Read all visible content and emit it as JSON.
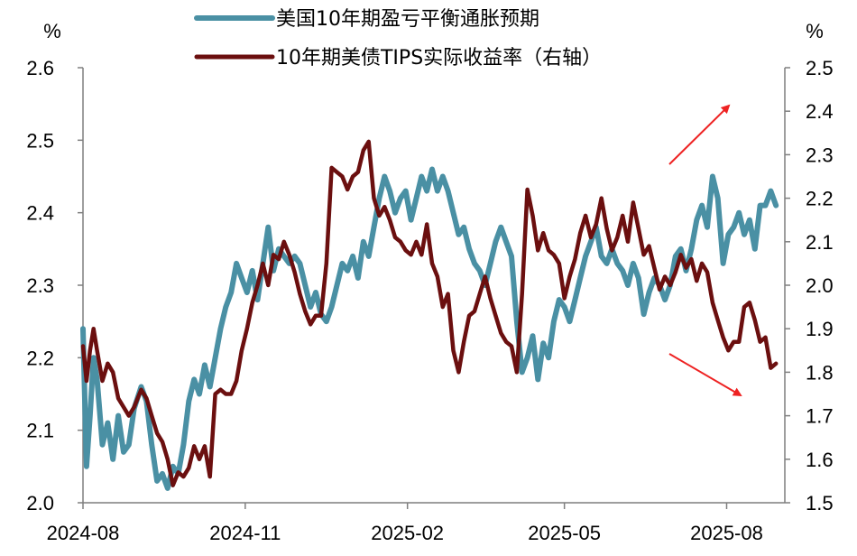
{
  "chart_data": {
    "type": "line",
    "title": "",
    "xlabel": "",
    "ylabel": "%",
    "y2label": "%",
    "x_ticks": [
      "2024-08",
      "2024-11",
      "2025-02",
      "2025-05",
      "2025-08"
    ],
    "ylim": [
      2.0,
      2.6
    ],
    "y_ticks": [
      "2.0",
      "2.1",
      "2.2",
      "2.3",
      "2.4",
      "2.5",
      "2.6"
    ],
    "y2lim": [
      1.5,
      2.5
    ],
    "y2_ticks": [
      "1.5",
      "1.6",
      "1.7",
      "1.8",
      "1.9",
      "2.0",
      "2.1",
      "2.2",
      "2.3",
      "2.4",
      "2.5"
    ],
    "legend_position": "top-center",
    "grid": false,
    "annotations": [
      "up-arrow",
      "down-arrow"
    ],
    "colors": {
      "breakeven": "#4a90a4",
      "tips": "#6b0f0f",
      "arrow": "#ee2222",
      "axis": "#7f7f7f"
    },
    "series": [
      {
        "name": "美国10年期盈亏平衡通胀预期",
        "axis": "left",
        "points": [
          [
            "2024-08-01",
            2.24
          ],
          [
            "2024-08-03",
            2.05
          ],
          [
            "2024-08-05",
            2.12
          ],
          [
            "2024-08-07",
            2.2
          ],
          [
            "2024-08-09",
            2.17
          ],
          [
            "2024-08-12",
            2.08
          ],
          [
            "2024-08-15",
            2.11
          ],
          [
            "2024-08-18",
            2.06
          ],
          [
            "2024-08-21",
            2.12
          ],
          [
            "2024-08-24",
            2.07
          ],
          [
            "2024-08-27",
            2.08
          ],
          [
            "2024-08-30",
            2.13
          ],
          [
            "2024-09-03",
            2.16
          ],
          [
            "2024-09-06",
            2.14
          ],
          [
            "2024-09-09",
            2.08
          ],
          [
            "2024-09-12",
            2.03
          ],
          [
            "2024-09-15",
            2.04
          ],
          [
            "2024-09-18",
            2.02
          ],
          [
            "2024-09-21",
            2.05
          ],
          [
            "2024-09-24",
            2.04
          ],
          [
            "2024-09-27",
            2.08
          ],
          [
            "2024-09-30",
            2.14
          ],
          [
            "2024-10-03",
            2.17
          ],
          [
            "2024-10-06",
            2.15
          ],
          [
            "2024-10-09",
            2.19
          ],
          [
            "2024-10-12",
            2.16
          ],
          [
            "2024-10-15",
            2.2
          ],
          [
            "2024-10-18",
            2.24
          ],
          [
            "2024-10-21",
            2.27
          ],
          [
            "2024-10-24",
            2.29
          ],
          [
            "2024-10-27",
            2.33
          ],
          [
            "2024-10-30",
            2.31
          ],
          [
            "2024-11-02",
            2.29
          ],
          [
            "2024-11-05",
            2.32
          ],
          [
            "2024-11-08",
            2.28
          ],
          [
            "2024-11-11",
            2.33
          ],
          [
            "2024-11-14",
            2.38
          ],
          [
            "2024-11-17",
            2.32
          ],
          [
            "2024-11-20",
            2.35
          ],
          [
            "2024-11-23",
            2.34
          ],
          [
            "2024-11-26",
            2.33
          ],
          [
            "2024-11-29",
            2.34
          ],
          [
            "2024-12-02",
            2.33
          ],
          [
            "2024-12-05",
            2.3
          ],
          [
            "2024-12-08",
            2.27
          ],
          [
            "2024-12-11",
            2.29
          ],
          [
            "2024-12-14",
            2.26
          ],
          [
            "2024-12-17",
            2.25
          ],
          [
            "2024-12-20",
            2.27
          ],
          [
            "2024-12-23",
            2.3
          ],
          [
            "2024-12-26",
            2.33
          ],
          [
            "2024-12-29",
            2.32
          ],
          [
            "2025-01-01",
            2.34
          ],
          [
            "2025-01-04",
            2.31
          ],
          [
            "2025-01-07",
            2.36
          ],
          [
            "2025-01-10",
            2.34
          ],
          [
            "2025-01-13",
            2.38
          ],
          [
            "2025-01-16",
            2.42
          ],
          [
            "2025-01-19",
            2.45
          ],
          [
            "2025-01-22",
            2.43
          ],
          [
            "2025-01-25",
            2.4
          ],
          [
            "2025-01-28",
            2.42
          ],
          [
            "2025-01-31",
            2.43
          ],
          [
            "2025-02-03",
            2.39
          ],
          [
            "2025-02-06",
            2.42
          ],
          [
            "2025-02-09",
            2.45
          ],
          [
            "2025-02-12",
            2.43
          ],
          [
            "2025-02-15",
            2.46
          ],
          [
            "2025-02-18",
            2.43
          ],
          [
            "2025-02-21",
            2.45
          ],
          [
            "2025-02-24",
            2.43
          ],
          [
            "2025-02-27",
            2.4
          ],
          [
            "2025-03-02",
            2.37
          ],
          [
            "2025-03-05",
            2.38
          ],
          [
            "2025-03-08",
            2.35
          ],
          [
            "2025-03-11",
            2.33
          ],
          [
            "2025-03-14",
            2.32
          ],
          [
            "2025-03-17",
            2.3
          ],
          [
            "2025-03-20",
            2.33
          ],
          [
            "2025-03-23",
            2.36
          ],
          [
            "2025-03-26",
            2.38
          ],
          [
            "2025-03-29",
            2.36
          ],
          [
            "2025-04-01",
            2.34
          ],
          [
            "2025-04-04",
            2.25
          ],
          [
            "2025-04-07",
            2.18
          ],
          [
            "2025-04-10",
            2.2
          ],
          [
            "2025-04-13",
            2.23
          ],
          [
            "2025-04-16",
            2.17
          ],
          [
            "2025-04-19",
            2.22
          ],
          [
            "2025-04-22",
            2.2
          ],
          [
            "2025-04-25",
            2.25
          ],
          [
            "2025-04-28",
            2.28
          ],
          [
            "2025-05-01",
            2.27
          ],
          [
            "2025-05-04",
            2.25
          ],
          [
            "2025-05-07",
            2.28
          ],
          [
            "2025-05-10",
            2.31
          ],
          [
            "2025-05-13",
            2.34
          ],
          [
            "2025-05-16",
            2.36
          ],
          [
            "2025-05-19",
            2.38
          ],
          [
            "2025-05-22",
            2.34
          ],
          [
            "2025-05-25",
            2.33
          ],
          [
            "2025-05-28",
            2.35
          ],
          [
            "2025-05-31",
            2.33
          ],
          [
            "2025-06-03",
            2.32
          ],
          [
            "2025-06-06",
            2.3
          ],
          [
            "2025-06-09",
            2.33
          ],
          [
            "2025-06-12",
            2.31
          ],
          [
            "2025-06-15",
            2.26
          ],
          [
            "2025-06-18",
            2.29
          ],
          [
            "2025-06-21",
            2.31
          ],
          [
            "2025-06-24",
            2.3
          ],
          [
            "2025-06-27",
            2.28
          ],
          [
            "2025-06-30",
            2.3
          ],
          [
            "2025-07-03",
            2.34
          ],
          [
            "2025-07-06",
            2.35
          ],
          [
            "2025-07-09",
            2.32
          ],
          [
            "2025-07-12",
            2.35
          ],
          [
            "2025-07-15",
            2.39
          ],
          [
            "2025-07-18",
            2.41
          ],
          [
            "2025-07-21",
            2.38
          ],
          [
            "2025-07-24",
            2.45
          ],
          [
            "2025-07-27",
            2.42
          ],
          [
            "2025-07-30",
            2.33
          ],
          [
            "2025-08-02",
            2.37
          ],
          [
            "2025-08-05",
            2.38
          ],
          [
            "2025-08-08",
            2.4
          ],
          [
            "2025-08-11",
            2.37
          ],
          [
            "2025-08-14",
            2.39
          ],
          [
            "2025-08-17",
            2.35
          ],
          [
            "2025-08-20",
            2.41
          ],
          [
            "2025-08-23",
            2.41
          ],
          [
            "2025-08-26",
            2.43
          ],
          [
            "2025-08-29",
            2.41
          ]
        ]
      },
      {
        "name": "10年期美债TIPS实际收益率（右轴）",
        "axis": "right",
        "points": [
          [
            "2024-08-01",
            1.86
          ],
          [
            "2024-08-03",
            1.78
          ],
          [
            "2024-08-05",
            1.85
          ],
          [
            "2024-08-07",
            1.9
          ],
          [
            "2024-08-09",
            1.85
          ],
          [
            "2024-08-12",
            1.78
          ],
          [
            "2024-08-15",
            1.82
          ],
          [
            "2024-08-18",
            1.8
          ],
          [
            "2024-08-21",
            1.74
          ],
          [
            "2024-08-24",
            1.72
          ],
          [
            "2024-08-27",
            1.7
          ],
          [
            "2024-08-30",
            1.72
          ],
          [
            "2024-09-03",
            1.76
          ],
          [
            "2024-09-06",
            1.74
          ],
          [
            "2024-09-09",
            1.7
          ],
          [
            "2024-09-12",
            1.66
          ],
          [
            "2024-09-15",
            1.64
          ],
          [
            "2024-09-18",
            1.6
          ],
          [
            "2024-09-21",
            1.54
          ],
          [
            "2024-09-24",
            1.57
          ],
          [
            "2024-09-27",
            1.56
          ],
          [
            "2024-09-30",
            1.58
          ],
          [
            "2024-10-03",
            1.63
          ],
          [
            "2024-10-06",
            1.6
          ],
          [
            "2024-10-09",
            1.63
          ],
          [
            "2024-10-12",
            1.56
          ],
          [
            "2024-10-15",
            1.75
          ],
          [
            "2024-10-18",
            1.76
          ],
          [
            "2024-10-21",
            1.75
          ],
          [
            "2024-10-24",
            1.75
          ],
          [
            "2024-10-27",
            1.78
          ],
          [
            "2024-10-30",
            1.85
          ],
          [
            "2024-11-02",
            1.9
          ],
          [
            "2024-11-05",
            1.96
          ],
          [
            "2024-11-08",
            2.0
          ],
          [
            "2024-11-11",
            2.05
          ],
          [
            "2024-11-14",
            2.0
          ],
          [
            "2024-11-17",
            2.07
          ],
          [
            "2024-11-20",
            2.06
          ],
          [
            "2024-11-23",
            2.1
          ],
          [
            "2024-11-26",
            2.07
          ],
          [
            "2024-11-29",
            2.03
          ],
          [
            "2024-12-02",
            1.98
          ],
          [
            "2024-12-05",
            1.94
          ],
          [
            "2024-12-08",
            1.91
          ],
          [
            "2024-12-11",
            1.93
          ],
          [
            "2024-12-14",
            1.93
          ],
          [
            "2024-12-17",
            2.05
          ],
          [
            "2024-12-20",
            2.27
          ],
          [
            "2024-12-23",
            2.26
          ],
          [
            "2024-12-26",
            2.25
          ],
          [
            "2024-12-29",
            2.22
          ],
          [
            "2025-01-01",
            2.25
          ],
          [
            "2025-01-04",
            2.26
          ],
          [
            "2025-01-07",
            2.31
          ],
          [
            "2025-01-10",
            2.33
          ],
          [
            "2025-01-13",
            2.2
          ],
          [
            "2025-01-16",
            2.16
          ],
          [
            "2025-01-19",
            2.18
          ],
          [
            "2025-01-22",
            2.15
          ],
          [
            "2025-01-25",
            2.11
          ],
          [
            "2025-01-28",
            2.1
          ],
          [
            "2025-01-31",
            2.08
          ],
          [
            "2025-02-03",
            2.07
          ],
          [
            "2025-02-06",
            2.1
          ],
          [
            "2025-02-09",
            2.07
          ],
          [
            "2025-02-12",
            2.14
          ],
          [
            "2025-02-15",
            2.05
          ],
          [
            "2025-02-18",
            2.02
          ],
          [
            "2025-02-21",
            1.95
          ],
          [
            "2025-02-24",
            1.98
          ],
          [
            "2025-02-27",
            1.85
          ],
          [
            "2025-03-02",
            1.8
          ],
          [
            "2025-03-05",
            1.87
          ],
          [
            "2025-03-08",
            1.93
          ],
          [
            "2025-03-11",
            1.94
          ],
          [
            "2025-03-14",
            1.98
          ],
          [
            "2025-03-17",
            2.02
          ],
          [
            "2025-03-20",
            1.97
          ],
          [
            "2025-03-23",
            1.93
          ],
          [
            "2025-03-26",
            1.89
          ],
          [
            "2025-03-29",
            1.87
          ],
          [
            "2025-04-01",
            1.86
          ],
          [
            "2025-04-04",
            1.8
          ],
          [
            "2025-04-07",
            1.98
          ],
          [
            "2025-04-10",
            2.22
          ],
          [
            "2025-04-13",
            2.16
          ],
          [
            "2025-04-16",
            2.08
          ],
          [
            "2025-04-19",
            2.12
          ],
          [
            "2025-04-22",
            2.08
          ],
          [
            "2025-04-25",
            2.07
          ],
          [
            "2025-04-28",
            2.05
          ],
          [
            "2025-05-01",
            1.97
          ],
          [
            "2025-05-04",
            2.02
          ],
          [
            "2025-05-07",
            2.06
          ],
          [
            "2025-05-10",
            2.12
          ],
          [
            "2025-05-13",
            2.16
          ],
          [
            "2025-05-16",
            2.11
          ],
          [
            "2025-05-19",
            2.14
          ],
          [
            "2025-05-22",
            2.2
          ],
          [
            "2025-05-25",
            2.13
          ],
          [
            "2025-05-28",
            2.08
          ],
          [
            "2025-05-31",
            2.11
          ],
          [
            "2025-06-03",
            2.16
          ],
          [
            "2025-06-06",
            2.1
          ],
          [
            "2025-06-09",
            2.19
          ],
          [
            "2025-06-12",
            2.13
          ],
          [
            "2025-06-15",
            2.07
          ],
          [
            "2025-06-18",
            2.09
          ],
          [
            "2025-06-21",
            2.04
          ],
          [
            "2025-06-24",
            1.99
          ],
          [
            "2025-06-27",
            2.02
          ],
          [
            "2025-06-30",
            2.0
          ],
          [
            "2025-07-03",
            2.03
          ],
          [
            "2025-07-06",
            2.07
          ],
          [
            "2025-07-09",
            2.04
          ],
          [
            "2025-07-12",
            2.06
          ],
          [
            "2025-07-15",
            2.01
          ],
          [
            "2025-07-18",
            2.05
          ],
          [
            "2025-07-21",
            2.03
          ],
          [
            "2025-07-24",
            1.96
          ],
          [
            "2025-07-27",
            1.92
          ],
          [
            "2025-07-30",
            1.88
          ],
          [
            "2025-08-02",
            1.85
          ],
          [
            "2025-08-05",
            1.87
          ],
          [
            "2025-08-08",
            1.87
          ],
          [
            "2025-08-11",
            1.95
          ],
          [
            "2025-08-14",
            1.96
          ],
          [
            "2025-08-17",
            1.92
          ],
          [
            "2025-08-20",
            1.87
          ],
          [
            "2025-08-23",
            1.88
          ],
          [
            "2025-08-26",
            1.81
          ],
          [
            "2025-08-29",
            1.82
          ]
        ]
      }
    ]
  }
}
